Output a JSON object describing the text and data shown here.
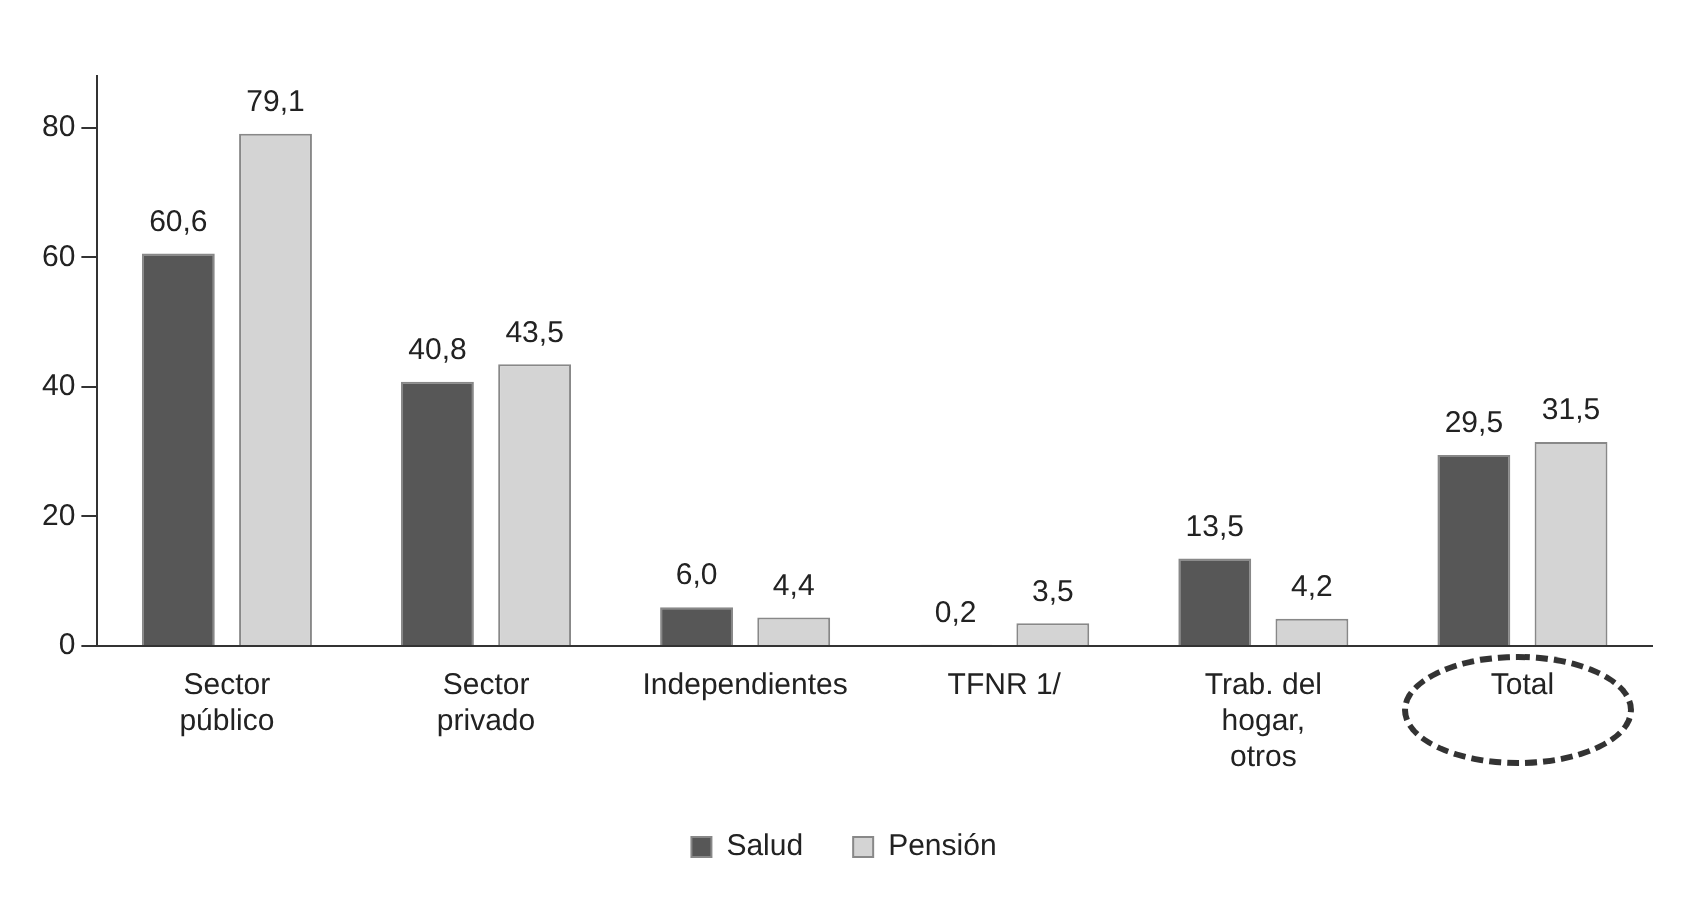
{
  "chart_data": {
    "type": "bar",
    "categories": [
      "Sector público",
      "Sector privado",
      "Independientes",
      "TFNR 1/",
      "Trab. del hogar, otros",
      "Total"
    ],
    "series": [
      {
        "name": "Salud",
        "color": "#575757",
        "values": [
          60.6,
          40.8,
          6.0,
          0.2,
          13.5,
          29.5
        ],
        "value_labels": [
          "60,6",
          "40,8",
          "6,0",
          "0,2",
          "13,5",
          "29,5"
        ]
      },
      {
        "name": "Pensión",
        "color": "#d4d4d4",
        "values": [
          79.1,
          43.5,
          4.4,
          3.5,
          4.2,
          31.5
        ],
        "value_labels": [
          "79,1",
          "43,5",
          "4,4",
          "3,5",
          "4,2",
          "31,5"
        ]
      }
    ],
    "ylim": [
      0,
      88
    ],
    "yticks": [
      0,
      20,
      40,
      60,
      80
    ],
    "grid": false,
    "legend": "bottom"
  }
}
